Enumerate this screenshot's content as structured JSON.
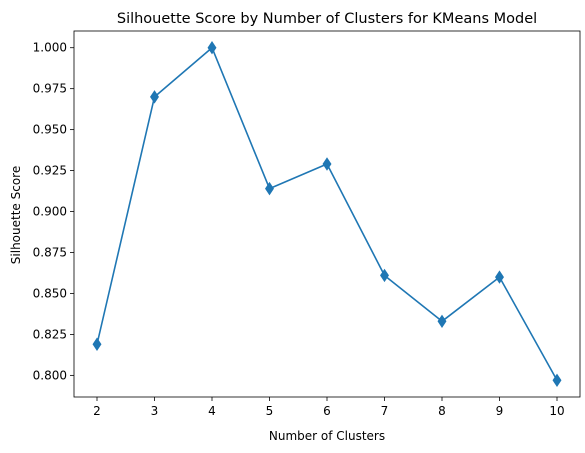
{
  "chart_data": {
    "type": "line",
    "title": "Silhouette Score by Number of Clusters for KMeans Model",
    "xlabel": "Number of Clusters",
    "ylabel": "Silhouette Score",
    "x": [
      2,
      3,
      4,
      5,
      6,
      7,
      8,
      9,
      10
    ],
    "series": [
      {
        "values": [
          0.819,
          0.97,
          1.0,
          0.914,
          0.929,
          0.861,
          0.833,
          0.86,
          0.797
        ],
        "color": "#1f77b4",
        "marker": "thin-diamond"
      }
    ],
    "xticks": [
      "2",
      "3",
      "4",
      "5",
      "6",
      "7",
      "8",
      "9",
      "10"
    ],
    "yticks": [
      "0.800",
      "0.825",
      "0.850",
      "0.875",
      "0.900",
      "0.925",
      "0.950",
      "0.975",
      "1.000"
    ],
    "xlim": [
      1.6,
      10.4
    ],
    "ylim": [
      0.7868,
      1.0102
    ],
    "grid": false,
    "legend": "none"
  }
}
